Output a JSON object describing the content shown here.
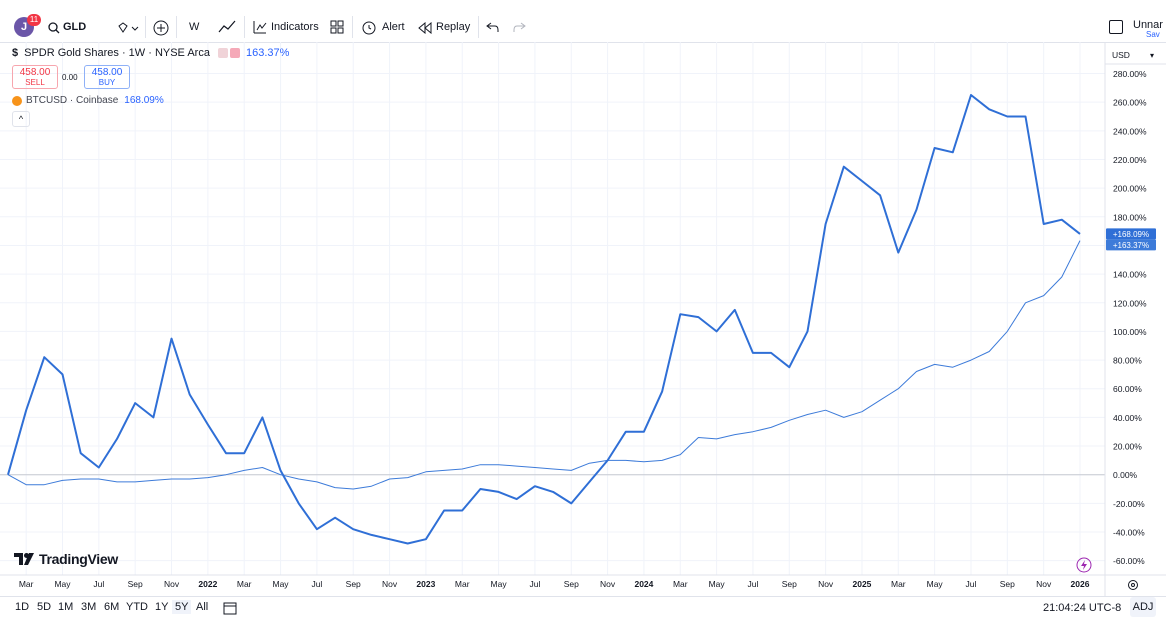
{
  "toolbar": {
    "badge": "11",
    "symbol": "GLD",
    "interval": "W",
    "indicators": "Indicators",
    "alert": "Alert",
    "replay": "Replay",
    "layout_name": "Unnar",
    "save": "Sav"
  },
  "trade": {
    "sell_price": "458.00",
    "sell": "SELL",
    "spread": "0.00",
    "buy_price": "458.00",
    "buy": "BUY"
  },
  "branding": "TradingView",
  "bottom_bar": {
    "ranges": [
      "1D",
      "5D",
      "1M",
      "3M",
      "6M",
      "YTD",
      "1Y",
      "5Y",
      "All"
    ],
    "time": "21:04:24 UTC-8",
    "adj": "ADJ"
  },
  "chart_data": {
    "type": "line",
    "y_axis_label": "USD",
    "grid": true,
    "x": [
      "2021-02",
      "2021-03",
      "2021-04",
      "2021-05",
      "2021-06",
      "2021-07",
      "2021-08",
      "2021-09",
      "2021-10",
      "2021-11",
      "2021-12",
      "2022-01",
      "2022-02",
      "2022-03",
      "2022-04",
      "2022-05",
      "2022-06",
      "2022-07",
      "2022-08",
      "2022-09",
      "2022-10",
      "2022-11",
      "2022-12",
      "2023-01",
      "2023-02",
      "2023-03",
      "2023-04",
      "2023-05",
      "2023-06",
      "2023-07",
      "2023-08",
      "2023-09",
      "2023-10",
      "2023-11",
      "2023-12",
      "2024-01",
      "2024-02",
      "2024-03",
      "2024-04",
      "2024-05",
      "2024-06",
      "2024-07",
      "2024-08",
      "2024-09",
      "2024-10",
      "2024-11",
      "2024-12",
      "2025-01",
      "2025-02",
      "2025-03",
      "2025-04",
      "2025-05",
      "2025-06",
      "2025-07",
      "2025-08",
      "2025-09",
      "2025-10",
      "2025-11",
      "2025-12",
      "2026-01"
    ],
    "xlim": [
      "2021-02",
      "2026-01"
    ],
    "xticks": [
      {
        "value": "2021-03",
        "label": "Mar"
      },
      {
        "value": "2021-05",
        "label": "May"
      },
      {
        "value": "2021-07",
        "label": "Jul"
      },
      {
        "value": "2021-09",
        "label": "Sep"
      },
      {
        "value": "2021-11",
        "label": "Nov"
      },
      {
        "value": "2022-01",
        "label": "2022"
      },
      {
        "value": "2022-03",
        "label": "Mar"
      },
      {
        "value": "2022-05",
        "label": "May"
      },
      {
        "value": "2022-07",
        "label": "Jul"
      },
      {
        "value": "2022-09",
        "label": "Sep"
      },
      {
        "value": "2022-11",
        "label": "Nov"
      },
      {
        "value": "2023-01",
        "label": "2023"
      },
      {
        "value": "2023-03",
        "label": "Mar"
      },
      {
        "value": "2023-05",
        "label": "May"
      },
      {
        "value": "2023-07",
        "label": "Jul"
      },
      {
        "value": "2023-09",
        "label": "Sep"
      },
      {
        "value": "2023-11",
        "label": "Nov"
      },
      {
        "value": "2024-01",
        "label": "2024"
      },
      {
        "value": "2024-03",
        "label": "Mar"
      },
      {
        "value": "2024-05",
        "label": "May"
      },
      {
        "value": "2024-07",
        "label": "Jul"
      },
      {
        "value": "2024-09",
        "label": "Sep"
      },
      {
        "value": "2024-11",
        "label": "Nov"
      },
      {
        "value": "2025-01",
        "label": "2025"
      },
      {
        "value": "2025-03",
        "label": "Mar"
      },
      {
        "value": "2025-05",
        "label": "May"
      },
      {
        "value": "2025-07",
        "label": "Jul"
      },
      {
        "value": "2025-09",
        "label": "Sep"
      },
      {
        "value": "2025-11",
        "label": "Nov"
      },
      {
        "value": "2026-01",
        "label": "2026"
      }
    ],
    "ylim": [
      -70,
      302
    ],
    "yticks": [
      {
        "value": -60,
        "label": "-60.00%"
      },
      {
        "value": -40,
        "label": "-40.00%"
      },
      {
        "value": -20,
        "label": "-20.00%"
      },
      {
        "value": 0,
        "label": "0.00%"
      },
      {
        "value": 20,
        "label": "20.00%"
      },
      {
        "value": 40,
        "label": "40.00%"
      },
      {
        "value": 60,
        "label": "60.00%"
      },
      {
        "value": 80,
        "label": "80.00%"
      },
      {
        "value": 100,
        "label": "100.00%"
      },
      {
        "value": 120,
        "label": "120.00%"
      },
      {
        "value": 140,
        "label": "140.00%"
      },
      {
        "value": 160,
        "label": "160.00%"
      },
      {
        "value": 180,
        "label": "180.00%"
      },
      {
        "value": 200,
        "label": "200.00%"
      },
      {
        "value": 220,
        "label": "220.00%"
      },
      {
        "value": 240,
        "label": "240.00%"
      },
      {
        "value": 260,
        "label": "260.00%"
      },
      {
        "value": 280,
        "label": "280.00%"
      }
    ],
    "series": [
      {
        "name": "SPDR Gold Shares · 1W · NYSE Arca",
        "legend_value": "163.37%",
        "color": "#3d7bd9",
        "line_width": 1,
        "values": [
          0,
          -7,
          -7,
          -4,
          -3,
          -3,
          -5,
          -5,
          -4,
          -3,
          -3,
          -2,
          0,
          3,
          5,
          0,
          -3,
          -5,
          -9,
          -10,
          -8,
          -3,
          -2,
          2,
          3,
          4,
          7,
          7,
          6,
          5,
          4,
          3,
          8,
          10,
          10,
          9,
          10,
          14,
          26,
          25,
          28,
          30,
          33,
          38,
          42,
          45,
          40,
          44,
          52,
          60,
          72,
          77,
          75,
          80,
          86,
          100,
          120,
          125,
          138,
          163.37
        ],
        "value_labels": [
          null,
          null,
          null,
          null,
          null,
          null,
          null,
          null,
          null,
          null,
          null,
          null,
          null,
          null,
          null,
          null,
          null,
          null,
          null,
          null,
          null,
          null,
          null,
          null,
          null,
          null,
          null,
          null,
          null,
          null,
          null,
          null,
          null,
          null,
          null,
          null,
          null,
          null,
          null,
          null,
          null,
          null,
          null,
          null,
          null,
          null,
          null,
          null,
          null,
          null,
          null,
          null,
          null,
          null,
          null,
          null,
          null,
          null,
          null,
          "+163.37%"
        ]
      },
      {
        "name": "BTCUSD · Coinbase",
        "legend_value": "168.09%",
        "color": "#2f6fd6",
        "line_width": 2,
        "values": [
          0,
          45,
          82,
          70,
          15,
          5,
          25,
          50,
          40,
          95,
          56,
          35,
          15,
          15,
          40,
          3,
          -20,
          -38,
          -30,
          -38,
          -42,
          -45,
          -48,
          -45,
          -25,
          -25,
          -10,
          -12,
          -17,
          -8,
          -12,
          -20,
          -5,
          10,
          30,
          30,
          58,
          112,
          110,
          100,
          115,
          85,
          85,
          75,
          100,
          175,
          215,
          205,
          195,
          155,
          185,
          228,
          225,
          265,
          255,
          250,
          250,
          175,
          178,
          168.09
        ],
        "value_labels": [
          null,
          null,
          null,
          null,
          null,
          null,
          null,
          null,
          null,
          null,
          null,
          null,
          null,
          null,
          null,
          null,
          null,
          null,
          null,
          null,
          null,
          null,
          null,
          null,
          null,
          null,
          null,
          null,
          null,
          null,
          null,
          null,
          null,
          null,
          null,
          null,
          null,
          null,
          null,
          null,
          null,
          null,
          null,
          null,
          null,
          null,
          null,
          null,
          null,
          null,
          null,
          null,
          null,
          null,
          null,
          null,
          null,
          null,
          null,
          "+168.09%"
        ]
      }
    ]
  }
}
